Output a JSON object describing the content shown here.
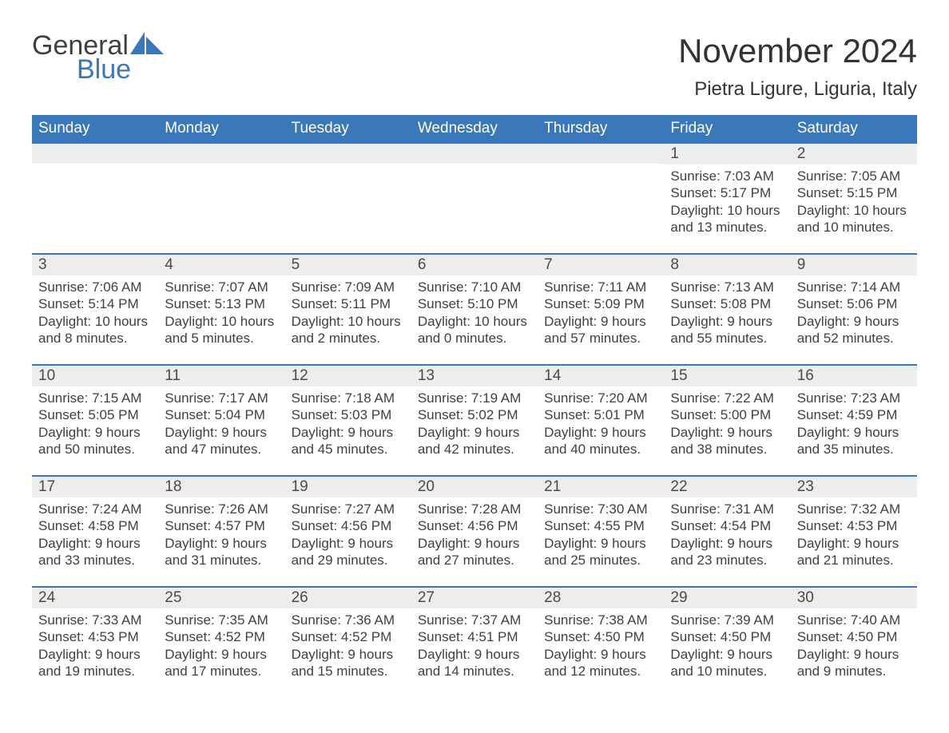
{
  "brand": {
    "word1": "General",
    "word2": "Blue"
  },
  "title": "November 2024",
  "location": "Pietra Ligure, Liguria, Italy",
  "colors": {
    "header_bg": "#3a78b9",
    "header_text": "#ffffff",
    "daynum_bg": "#eceded",
    "text": "#353535",
    "brand_gray": "#404040",
    "brand_blue": "#3a78b9",
    "page_bg": "#ffffff"
  },
  "dow": [
    "Sunday",
    "Monday",
    "Tuesday",
    "Wednesday",
    "Thursday",
    "Friday",
    "Saturday"
  ],
  "weeks": [
    [
      {
        "day": null
      },
      {
        "day": null
      },
      {
        "day": null
      },
      {
        "day": null
      },
      {
        "day": null
      },
      {
        "day": 1,
        "sunrise": "7:03 AM",
        "sunset": "5:17 PM",
        "daylight": "10 hours and 13 minutes."
      },
      {
        "day": 2,
        "sunrise": "7:05 AM",
        "sunset": "5:15 PM",
        "daylight": "10 hours and 10 minutes."
      }
    ],
    [
      {
        "day": 3,
        "sunrise": "7:06 AM",
        "sunset": "5:14 PM",
        "daylight": "10 hours and 8 minutes."
      },
      {
        "day": 4,
        "sunrise": "7:07 AM",
        "sunset": "5:13 PM",
        "daylight": "10 hours and 5 minutes."
      },
      {
        "day": 5,
        "sunrise": "7:09 AM",
        "sunset": "5:11 PM",
        "daylight": "10 hours and 2 minutes."
      },
      {
        "day": 6,
        "sunrise": "7:10 AM",
        "sunset": "5:10 PM",
        "daylight": "10 hours and 0 minutes."
      },
      {
        "day": 7,
        "sunrise": "7:11 AM",
        "sunset": "5:09 PM",
        "daylight": "9 hours and 57 minutes."
      },
      {
        "day": 8,
        "sunrise": "7:13 AM",
        "sunset": "5:08 PM",
        "daylight": "9 hours and 55 minutes."
      },
      {
        "day": 9,
        "sunrise": "7:14 AM",
        "sunset": "5:06 PM",
        "daylight": "9 hours and 52 minutes."
      }
    ],
    [
      {
        "day": 10,
        "sunrise": "7:15 AM",
        "sunset": "5:05 PM",
        "daylight": "9 hours and 50 minutes."
      },
      {
        "day": 11,
        "sunrise": "7:17 AM",
        "sunset": "5:04 PM",
        "daylight": "9 hours and 47 minutes."
      },
      {
        "day": 12,
        "sunrise": "7:18 AM",
        "sunset": "5:03 PM",
        "daylight": "9 hours and 45 minutes."
      },
      {
        "day": 13,
        "sunrise": "7:19 AM",
        "sunset": "5:02 PM",
        "daylight": "9 hours and 42 minutes."
      },
      {
        "day": 14,
        "sunrise": "7:20 AM",
        "sunset": "5:01 PM",
        "daylight": "9 hours and 40 minutes."
      },
      {
        "day": 15,
        "sunrise": "7:22 AM",
        "sunset": "5:00 PM",
        "daylight": "9 hours and 38 minutes."
      },
      {
        "day": 16,
        "sunrise": "7:23 AM",
        "sunset": "4:59 PM",
        "daylight": "9 hours and 35 minutes."
      }
    ],
    [
      {
        "day": 17,
        "sunrise": "7:24 AM",
        "sunset": "4:58 PM",
        "daylight": "9 hours and 33 minutes."
      },
      {
        "day": 18,
        "sunrise": "7:26 AM",
        "sunset": "4:57 PM",
        "daylight": "9 hours and 31 minutes."
      },
      {
        "day": 19,
        "sunrise": "7:27 AM",
        "sunset": "4:56 PM",
        "daylight": "9 hours and 29 minutes."
      },
      {
        "day": 20,
        "sunrise": "7:28 AM",
        "sunset": "4:56 PM",
        "daylight": "9 hours and 27 minutes."
      },
      {
        "day": 21,
        "sunrise": "7:30 AM",
        "sunset": "4:55 PM",
        "daylight": "9 hours and 25 minutes."
      },
      {
        "day": 22,
        "sunrise": "7:31 AM",
        "sunset": "4:54 PM",
        "daylight": "9 hours and 23 minutes."
      },
      {
        "day": 23,
        "sunrise": "7:32 AM",
        "sunset": "4:53 PM",
        "daylight": "9 hours and 21 minutes."
      }
    ],
    [
      {
        "day": 24,
        "sunrise": "7:33 AM",
        "sunset": "4:53 PM",
        "daylight": "9 hours and 19 minutes."
      },
      {
        "day": 25,
        "sunrise": "7:35 AM",
        "sunset": "4:52 PM",
        "daylight": "9 hours and 17 minutes."
      },
      {
        "day": 26,
        "sunrise": "7:36 AM",
        "sunset": "4:52 PM",
        "daylight": "9 hours and 15 minutes."
      },
      {
        "day": 27,
        "sunrise": "7:37 AM",
        "sunset": "4:51 PM",
        "daylight": "9 hours and 14 minutes."
      },
      {
        "day": 28,
        "sunrise": "7:38 AM",
        "sunset": "4:50 PM",
        "daylight": "9 hours and 12 minutes."
      },
      {
        "day": 29,
        "sunrise": "7:39 AM",
        "sunset": "4:50 PM",
        "daylight": "9 hours and 10 minutes."
      },
      {
        "day": 30,
        "sunrise": "7:40 AM",
        "sunset": "4:50 PM",
        "daylight": "9 hours and 9 minutes."
      }
    ]
  ],
  "labels": {
    "sunrise": "Sunrise: ",
    "sunset": "Sunset: ",
    "daylight": "Daylight: "
  }
}
